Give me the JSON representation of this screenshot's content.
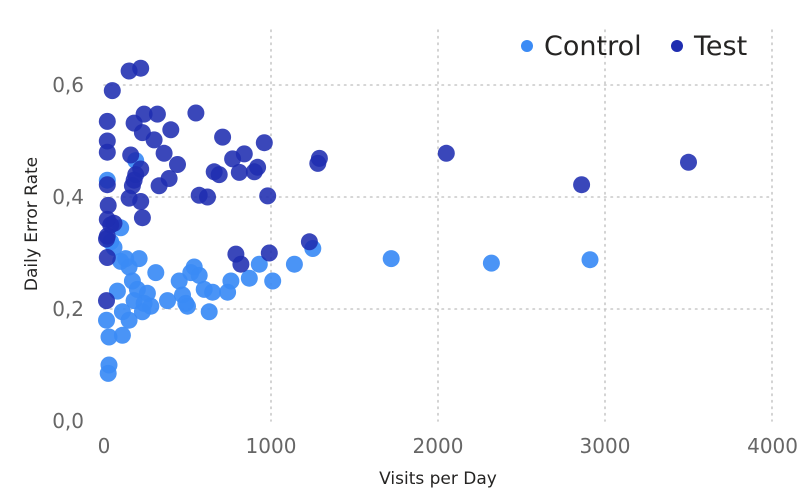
{
  "chart_data": {
    "type": "scatter",
    "xlabel": "Visits per Day",
    "ylabel": "Daily Error Rate",
    "xlim": [
      0,
      4000
    ],
    "ylim": [
      0,
      0.6
    ],
    "x_ticks": [
      0,
      1000,
      2000,
      3000,
      4000
    ],
    "y_ticks": [
      0,
      0.2,
      0.4,
      0.6
    ],
    "x_tick_labels": [
      "0",
      "1000",
      "2000",
      "3000",
      "4000"
    ],
    "y_tick_labels": [
      "0,0",
      "0,2",
      "0,4",
      "0,6"
    ],
    "grid": true,
    "legend_position": "top-right",
    "series": [
      {
        "name": "Control",
        "color": "#3b8bf5",
        "points": [
          [
            20,
            0.43
          ],
          [
            30,
            0.1
          ],
          [
            25,
            0.085
          ],
          [
            15,
            0.18
          ],
          [
            30,
            0.15
          ],
          [
            40,
            0.32
          ],
          [
            60,
            0.31
          ],
          [
            100,
            0.345
          ],
          [
            80,
            0.232
          ],
          [
            100,
            0.285
          ],
          [
            110,
            0.195
          ],
          [
            110,
            0.153
          ],
          [
            130,
            0.29
          ],
          [
            150,
            0.275
          ],
          [
            150,
            0.18
          ],
          [
            170,
            0.25
          ],
          [
            180,
            0.215
          ],
          [
            190,
            0.465
          ],
          [
            200,
            0.235
          ],
          [
            210,
            0.29
          ],
          [
            230,
            0.195
          ],
          [
            240,
            0.21
          ],
          [
            260,
            0.228
          ],
          [
            280,
            0.205
          ],
          [
            310,
            0.265
          ],
          [
            380,
            0.215
          ],
          [
            450,
            0.25
          ],
          [
            470,
            0.225
          ],
          [
            490,
            0.21
          ],
          [
            500,
            0.205
          ],
          [
            520,
            0.265
          ],
          [
            540,
            0.275
          ],
          [
            570,
            0.26
          ],
          [
            600,
            0.235
          ],
          [
            630,
            0.195
          ],
          [
            650,
            0.23
          ],
          [
            740,
            0.23
          ],
          [
            760,
            0.25
          ],
          [
            870,
            0.255
          ],
          [
            930,
            0.28
          ],
          [
            1010,
            0.25
          ],
          [
            1140,
            0.28
          ],
          [
            1250,
            0.308
          ],
          [
            1720,
            0.29
          ],
          [
            2320,
            0.282
          ],
          [
            2910,
            0.288
          ]
        ]
      },
      {
        "name": "Test",
        "color": "#1f2db0",
        "points": [
          [
            50,
            0.59
          ],
          [
            150,
            0.625
          ],
          [
            220,
            0.63
          ],
          [
            20,
            0.535
          ],
          [
            180,
            0.532
          ],
          [
            240,
            0.548
          ],
          [
            320,
            0.548
          ],
          [
            550,
            0.55
          ],
          [
            230,
            0.515
          ],
          [
            400,
            0.52
          ],
          [
            20,
            0.5
          ],
          [
            300,
            0.502
          ],
          [
            710,
            0.507
          ],
          [
            960,
            0.497
          ],
          [
            20,
            0.48
          ],
          [
            160,
            0.475
          ],
          [
            360,
            0.478
          ],
          [
            2050,
            0.478
          ],
          [
            840,
            0.477
          ],
          [
            770,
            0.468
          ],
          [
            1290,
            0.469
          ],
          [
            3500,
            0.462
          ],
          [
            1280,
            0.46
          ],
          [
            440,
            0.458
          ],
          [
            920,
            0.453
          ],
          [
            900,
            0.445
          ],
          [
            220,
            0.45
          ],
          [
            190,
            0.44
          ],
          [
            390,
            0.433
          ],
          [
            660,
            0.445
          ],
          [
            810,
            0.444
          ],
          [
            690,
            0.44
          ],
          [
            180,
            0.43
          ],
          [
            170,
            0.42
          ],
          [
            330,
            0.42
          ],
          [
            20,
            0.422
          ],
          [
            2860,
            0.422
          ],
          [
            570,
            0.403
          ],
          [
            620,
            0.4
          ],
          [
            150,
            0.398
          ],
          [
            220,
            0.392
          ],
          [
            980,
            0.402
          ],
          [
            25,
            0.385
          ],
          [
            20,
            0.36
          ],
          [
            60,
            0.353
          ],
          [
            40,
            0.35
          ],
          [
            230,
            0.363
          ],
          [
            20,
            0.33
          ],
          [
            15,
            0.325
          ],
          [
            1230,
            0.32
          ],
          [
            20,
            0.292
          ],
          [
            790,
            0.298
          ],
          [
            990,
            0.3
          ],
          [
            820,
            0.28
          ],
          [
            15,
            0.215
          ]
        ]
      }
    ]
  }
}
